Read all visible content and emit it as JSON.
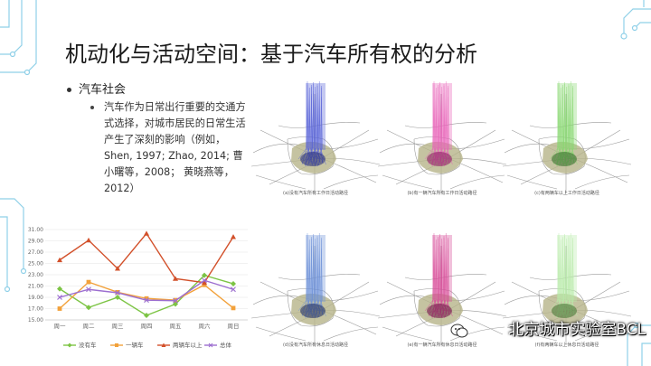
{
  "slide": {
    "title": "机动化与活动空间：基于汽车所有权的分析",
    "bullet_level1": "汽车社会",
    "bullet_level2": "汽车作为日常出行重要的交通方式选择，对城市居民的日常生活产生了深刻的影响（例如，Shen, 1997; Zhao, 2014; 曹小曙等，2008； 黄晓燕等，2012）",
    "watermark": "北京城市实验室BCL"
  },
  "maps": [
    {
      "color": "#5560d8",
      "dark": "#232a7a",
      "caption": "(a)没有汽车所有工作日活动路径"
    },
    {
      "color": "#e860b8",
      "dark": "#8a1560",
      "caption": "(b)有一辆汽车所有工作日活动路径"
    },
    {
      "color": "#88d870",
      "dark": "#2e6a24",
      "caption": "(c)有两辆车以上工作日活动路径"
    },
    {
      "color": "#6a8ed8",
      "dark": "#1e2a5e",
      "caption": "(d)没有汽车所有休息日活动路径"
    },
    {
      "color": "#d84a98",
      "dark": "#6e1046",
      "caption": "(e)有一辆汽车所有休息日活动路径"
    },
    {
      "color": "#b8eaa8",
      "dark": "#40702e",
      "caption": "(f)有两辆车以上休息日活动路径"
    }
  ],
  "chart_data": {
    "type": "line",
    "categories": [
      "周一",
      "周二",
      "周三",
      "周四",
      "周五",
      "周六",
      "周日"
    ],
    "ylim": [
      15.0,
      31.0
    ],
    "yticks": [
      "31.00",
      "29.00",
      "27.00",
      "25.00",
      "23.00",
      "21.00",
      "19.00",
      "17.00",
      "15.00"
    ],
    "series": [
      {
        "name": "没有车",
        "color": "#7cc444",
        "marker": "diamond",
        "values": [
          20.5,
          17.2,
          19.0,
          15.8,
          17.8,
          22.9,
          21.4
        ]
      },
      {
        "name": "一辆车",
        "color": "#f2a13a",
        "marker": "square",
        "values": [
          17.0,
          21.7,
          19.9,
          18.8,
          18.5,
          21.2,
          17.1
        ]
      },
      {
        "name": "两辆车以上",
        "color": "#d2502a",
        "marker": "triangle",
        "values": [
          25.6,
          29.1,
          24.1,
          30.3,
          22.3,
          21.6,
          29.7
        ]
      },
      {
        "name": "总体",
        "color": "#9c6ed0",
        "marker": "x",
        "values": [
          19.0,
          20.4,
          19.8,
          18.5,
          18.4,
          22.0,
          20.4
        ]
      }
    ]
  }
}
